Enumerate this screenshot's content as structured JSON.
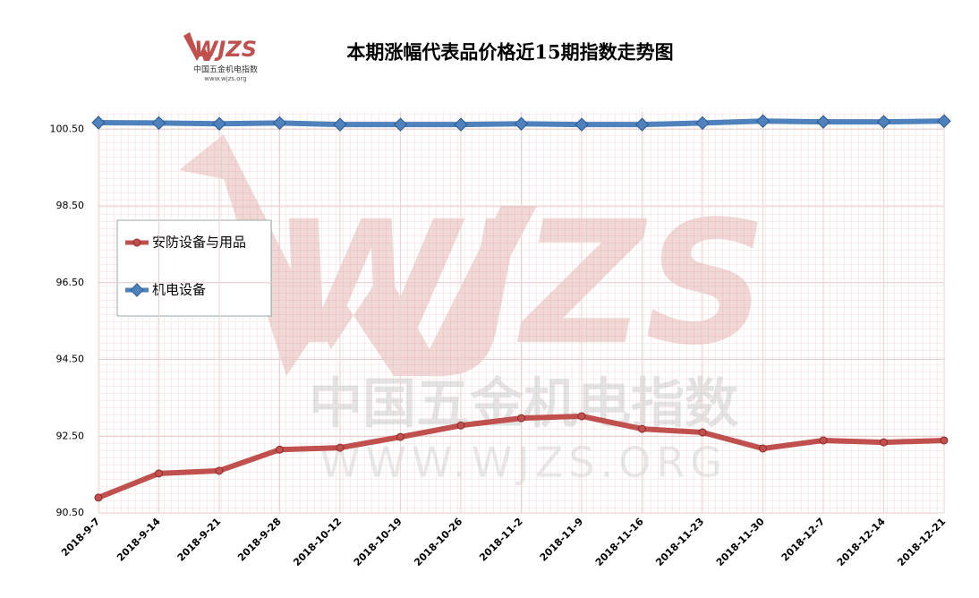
{
  "logo": {
    "brand": "WJZS",
    "caption": "中国五金机电指数",
    "url": "www.wjzs.org"
  },
  "watermark": {
    "caption": "中国五金机电指数",
    "url": "WWW.WJZS.ORG"
  },
  "chart_data": {
    "type": "line",
    "title": "本期涨幅代表品价格近15期指数走势图",
    "categories": [
      "2018-9-7",
      "2018-9-14",
      "2018-9-21",
      "2018-9-28",
      "2018-10-12",
      "2018-10-19",
      "2018-10-26",
      "2018-11-2",
      "2018-11-9",
      "2018-11-16",
      "2018-11-23",
      "2018-11-30",
      "2018-12-7",
      "2018-12-14",
      "2018-12-21"
    ],
    "series": [
      {
        "name": "安防设备与用品",
        "color": "#c0504d",
        "values": [
          90.9,
          91.53,
          91.6,
          92.15,
          92.2,
          92.48,
          92.78,
          92.97,
          93.02,
          92.69,
          92.6,
          92.18,
          92.39,
          92.34,
          92.39
        ]
      },
      {
        "name": "机电设备",
        "color": "#4f81bd",
        "values": [
          100.67,
          100.66,
          100.64,
          100.66,
          100.62,
          100.62,
          100.62,
          100.64,
          100.62,
          100.62,
          100.66,
          100.71,
          100.69,
          100.69,
          100.71
        ]
      }
    ],
    "ylim": [
      90.5,
      100.95
    ],
    "yticks": [
      {
        "value": 90.5,
        "label": "90.50"
      },
      {
        "value": 92.5,
        "label": "92.50"
      },
      {
        "value": 94.5,
        "label": "94.50"
      },
      {
        "value": 96.5,
        "label": "96.50"
      },
      {
        "value": 98.5,
        "label": "98.50"
      },
      {
        "value": 100.5,
        "label": "100.50"
      }
    ],
    "grid": true,
    "legend": "left"
  }
}
